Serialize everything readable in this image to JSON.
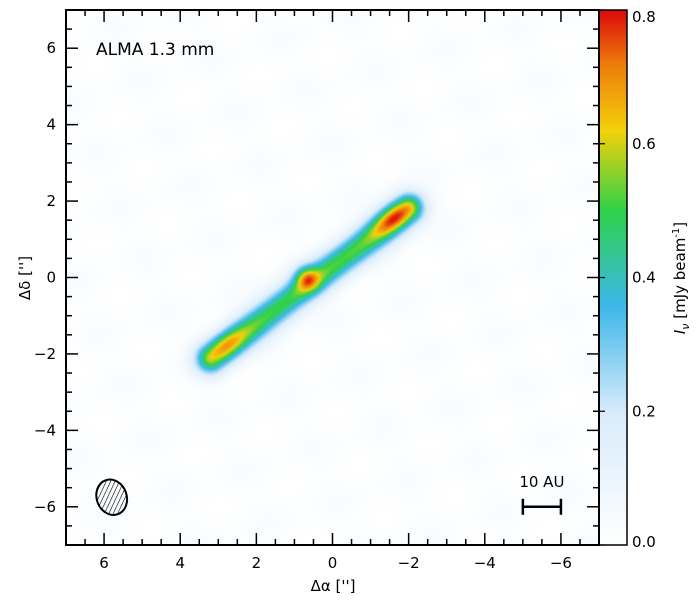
{
  "chart_data": {
    "type": "heatmap",
    "annotation": "ALMA 1.3 mm",
    "xlabel": "Δα ['']",
    "ylabel": "Δδ ['']",
    "colorbar_label": "I",
    "colorbar_label_sub": "ν",
    "colorbar_label_unit": " [mJy beam",
    "colorbar_label_exp": "-1",
    "colorbar_label_end": "]",
    "xlim": [
      7,
      -7
    ],
    "ylim": [
      -7,
      7
    ],
    "xticks": [
      6,
      4,
      2,
      0,
      -2,
      -4,
      -6
    ],
    "xtick_labels": [
      "6",
      "4",
      "2",
      "0",
      "−2",
      "−4",
      "−6"
    ],
    "yticks": [
      6,
      4,
      2,
      0,
      -2,
      -4,
      -6
    ],
    "ytick_labels": [
      "6",
      "4",
      "2",
      "0",
      "−2",
      "−4",
      "−6"
    ],
    "colorbar_range": [
      0.0,
      0.8
    ],
    "colorbar_ticks": [
      0.0,
      0.2,
      0.4,
      0.6,
      0.8
    ],
    "colorbar_tick_labels": [
      "0.0",
      "0.2",
      "0.4",
      "0.6",
      "0.8"
    ],
    "colormap": [
      "#ffffff",
      "#d8ecfb",
      "#3cb8ea",
      "#2fd24a",
      "#f4d10a",
      "#ee7d0c",
      "#dc0a0a",
      "#c8104a"
    ],
    "disk": {
      "from": [
        3.2,
        -2.1
      ],
      "to": [
        -2.0,
        1.8
      ],
      "base_intensity": 0.5,
      "peaks": [
        {
          "x": -1.6,
          "y": 1.6,
          "value": 0.8
        },
        {
          "x": 0.7,
          "y": 0.0,
          "value": 0.8
        },
        {
          "x": 2.8,
          "y": -1.75,
          "value": 0.68
        }
      ]
    },
    "beam": {
      "x": 5.8,
      "y": -5.75
    },
    "scale_bar": {
      "label": "10 AU",
      "from": -5,
      "to": -6,
      "y": -6
    }
  }
}
